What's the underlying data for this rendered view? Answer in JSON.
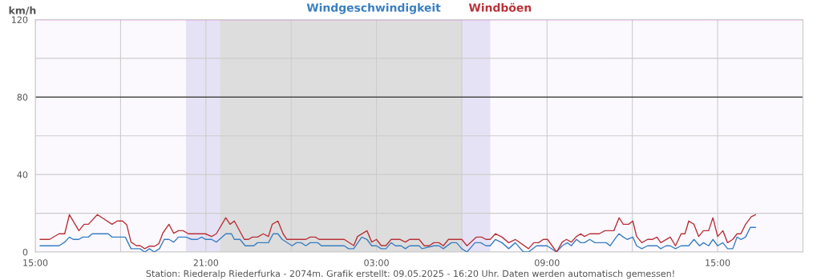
{
  "chart_data": {
    "type": "line",
    "ylabel": "km/h",
    "xlim": [
      "2025-05-08T15:00",
      "2025-05-09T18:00"
    ],
    "xticks": [
      {
        "value": "2025-05-08T15:00",
        "label": "15:00"
      },
      {
        "value": "2025-05-08T18:00",
        "label": null
      },
      {
        "value": "2025-05-08T21:00",
        "label": "21:00"
      },
      {
        "value": "2025-05-09T00:00",
        "label": null
      },
      {
        "value": "2025-05-09T03:00",
        "label": "03:00"
      },
      {
        "value": "2025-05-09T06:00",
        "label": null
      },
      {
        "value": "2025-05-09T09:00",
        "label": "09:00"
      },
      {
        "value": "2025-05-09T12:00",
        "label": null
      },
      {
        "value": "2025-05-09T15:00",
        "label": "15:00"
      }
    ],
    "ylim": [
      0,
      120
    ],
    "yticks": [
      0,
      {
        "value": 20,
        "label": null
      },
      40,
      {
        "value": 60,
        "label": null
      },
      80,
      {
        "value": 100,
        "label": null
      },
      120
    ],
    "grid": true,
    "legend": "top",
    "marker": "none",
    "line_style": "solid",
    "series": [
      {
        "name": "Windgeschwindigkeit",
        "color": "#3a7fc1",
        "x": [
          "2025-05-08T15:10",
          "2025-05-08T15:50",
          "2025-05-08T16:02",
          "2025-05-08T16:12",
          "2025-05-08T16:20",
          "2025-05-08T16:32",
          "2025-05-08T16:40",
          "2025-05-08T16:52",
          "2025-05-08T17:00",
          "2025-05-08T17:34",
          "2025-05-08T17:42",
          "2025-05-08T18:10",
          "2025-05-08T18:22",
          "2025-05-08T18:41",
          "2025-05-08T18:51",
          "2025-05-08T19:01",
          "2025-05-08T19:11",
          "2025-05-08T19:22",
          "2025-05-08T19:32",
          "2025-05-08T19:42",
          "2025-05-08T19:52",
          "2025-05-08T20:02",
          "2025-05-08T20:18",
          "2025-05-08T20:30",
          "2025-05-08T20:42",
          "2025-05-08T20:51",
          "2025-05-08T20:59",
          "2025-05-08T21:12",
          "2025-05-08T21:22",
          "2025-05-08T21:42",
          "2025-05-08T21:54",
          "2025-05-08T22:00",
          "2025-05-08T22:12",
          "2025-05-08T22:23",
          "2025-05-08T22:41",
          "2025-05-08T22:49",
          "2025-05-08T23:12",
          "2025-05-08T23:22",
          "2025-05-08T23:32",
          "2025-05-08T23:41",
          "2025-05-09T00:02",
          "2025-05-09T00:11",
          "2025-05-09T00:21",
          "2025-05-09T00:31",
          "2025-05-09T00:40",
          "2025-05-09T00:56",
          "2025-05-09T01:04",
          "2025-05-09T01:52",
          "2025-05-09T02:01",
          "2025-05-09T02:12",
          "2025-05-09T02:29",
          "2025-05-09T02:40",
          "2025-05-09T02:50",
          "2025-05-09T03:00",
          "2025-05-09T03:10",
          "2025-05-09T03:20",
          "2025-05-09T03:31",
          "2025-05-09T03:40",
          "2025-05-09T03:52",
          "2025-05-09T04:01",
          "2025-05-09T04:10",
          "2025-05-09T04:30",
          "2025-05-09T04:36",
          "2025-05-09T05:01",
          "2025-05-09T05:12",
          "2025-05-09T05:21",
          "2025-05-09T05:38",
          "2025-05-09T05:49",
          "2025-05-09T06:00",
          "2025-05-09T06:11",
          "2025-05-09T06:28",
          "2025-05-09T06:40",
          "2025-05-09T06:51",
          "2025-05-09T07:00",
          "2025-05-09T07:11",
          "2025-05-09T07:25",
          "2025-05-09T07:39",
          "2025-05-09T07:53",
          "2025-05-09T08:10",
          "2025-05-09T08:21",
          "2025-05-09T08:38",
          "2025-05-09T09:00",
          "2025-05-09T09:20",
          "2025-05-09T09:32",
          "2025-05-09T09:43",
          "2025-05-09T09:51",
          "2025-05-09T10:02",
          "2025-05-09T10:11",
          "2025-05-09T10:19",
          "2025-05-09T10:30",
          "2025-05-09T10:41",
          "2025-05-09T11:05",
          "2025-05-09T11:13",
          "2025-05-09T11:26",
          "2025-05-09T11:32",
          "2025-05-09T11:41",
          "2025-05-09T11:49",
          "2025-05-09T12:01",
          "2025-05-09T12:09",
          "2025-05-09T12:20",
          "2025-05-09T12:32",
          "2025-05-09T12:52",
          "2025-05-09T13:00",
          "2025-05-09T13:11",
          "2025-05-09T13:20",
          "2025-05-09T13:31",
          "2025-05-09T13:43",
          "2025-05-09T13:59",
          "2025-05-09T14:10",
          "2025-05-09T14:22",
          "2025-05-09T14:30",
          "2025-05-09T14:41",
          "2025-05-09T14:50",
          "2025-05-09T15:00",
          "2025-05-09T15:11",
          "2025-05-09T15:21",
          "2025-05-09T15:32",
          "2025-05-09T15:41",
          "2025-05-09T15:49",
          "2025-05-09T15:59",
          "2025-05-09T16:09",
          "2025-05-09T16:20"
        ],
        "values": [
          3.2,
          3.2,
          5.1,
          7.7,
          6.5,
          6.5,
          7.7,
          7.7,
          9.4,
          9.4,
          7.7,
          7.7,
          1.7,
          1.7,
          0,
          1.7,
          0,
          1.7,
          6.5,
          6.5,
          5.1,
          7.7,
          7.7,
          6.5,
          6.5,
          7.7,
          6.5,
          6.5,
          5.1,
          9.4,
          9.4,
          6.5,
          6.5,
          3.2,
          3.2,
          4.8,
          4.8,
          9.4,
          9.4,
          6.5,
          3.2,
          4.8,
          4.8,
          3.2,
          4.8,
          4.8,
          3.2,
          3.2,
          1.7,
          1.7,
          7.7,
          6.5,
          3.2,
          3.2,
          1.7,
          1.7,
          4.8,
          3.2,
          3.2,
          1.7,
          3.2,
          3.2,
          1.7,
          3.2,
          3.2,
          1.7,
          4.8,
          4.8,
          1.7,
          0,
          4.8,
          4.8,
          3.2,
          3.2,
          6.5,
          4.8,
          1.7,
          4.8,
          0,
          0,
          3.2,
          3.2,
          0,
          3.2,
          4.8,
          3.2,
          6.5,
          4.8,
          4.8,
          6.5,
          4.8,
          4.8,
          3.2,
          7.7,
          9.4,
          7.7,
          6.5,
          7.7,
          3.2,
          1.7,
          3.2,
          3.2,
          1.7,
          3.2,
          3.2,
          1.7,
          3.2,
          3.2,
          6.5,
          3.2,
          4.8,
          3.2,
          6.5,
          3.2,
          4.8,
          1.7,
          1.7,
          7.7,
          6.5,
          7.7,
          12.7,
          12.7
        ]
      },
      {
        "name": "Windböen",
        "color": "#b8333a",
        "x": [
          "2025-05-08T15:10",
          "2025-05-08T15:30",
          "2025-05-08T15:50",
          "2025-05-08T16:02",
          "2025-05-08T16:12",
          "2025-05-08T16:32",
          "2025-05-08T16:43",
          "2025-05-08T16:52",
          "2025-05-08T17:11",
          "2025-05-08T17:42",
          "2025-05-08T17:53",
          "2025-05-08T18:04",
          "2025-05-08T18:13",
          "2025-05-08T18:22",
          "2025-05-08T18:33",
          "2025-05-08T18:41",
          "2025-05-08T18:51",
          "2025-05-08T19:01",
          "2025-05-08T19:12",
          "2025-05-08T19:21",
          "2025-05-08T19:29",
          "2025-05-08T19:42",
          "2025-05-08T19:52",
          "2025-05-08T20:02",
          "2025-05-08T20:12",
          "2025-05-08T20:23",
          "2025-05-08T20:59",
          "2025-05-08T21:12",
          "2025-05-08T21:22",
          "2025-05-08T21:42",
          "2025-05-08T21:51",
          "2025-05-08T22:00",
          "2025-05-08T22:21",
          "2025-05-08T22:30",
          "2025-05-08T22:38",
          "2025-05-08T22:49",
          "2025-05-08T23:01",
          "2025-05-08T23:12",
          "2025-05-08T23:20",
          "2025-05-08T23:32",
          "2025-05-08T23:43",
          "2025-05-08T23:51",
          "2025-05-09T00:31",
          "2025-05-09T00:40",
          "2025-05-09T00:51",
          "2025-05-09T00:59",
          "2025-05-09T01:52",
          "2025-05-09T02:12",
          "2025-05-09T02:20",
          "2025-05-09T02:40",
          "2025-05-09T02:50",
          "2025-05-09T03:00",
          "2025-05-09T03:10",
          "2025-05-09T03:20",
          "2025-05-09T03:31",
          "2025-05-09T03:50",
          "2025-05-09T04:01",
          "2025-05-09T04:10",
          "2025-05-09T04:30",
          "2025-05-09T04:41",
          "2025-05-09T04:51",
          "2025-05-09T05:01",
          "2025-05-09T05:12",
          "2025-05-09T05:21",
          "2025-05-09T05:32",
          "2025-05-09T06:00",
          "2025-05-09T06:11",
          "2025-05-09T06:31",
          "2025-05-09T06:42",
          "2025-05-09T06:51",
          "2025-05-09T07:00",
          "2025-05-09T07:11",
          "2025-05-09T07:25",
          "2025-05-09T07:39",
          "2025-05-09T07:53",
          "2025-05-09T08:21",
          "2025-05-09T08:32",
          "2025-05-09T08:42",
          "2025-05-09T08:52",
          "2025-05-09T09:01",
          "2025-05-09T09:20",
          "2025-05-09T09:32",
          "2025-05-09T09:41",
          "2025-05-09T09:51",
          "2025-05-09T10:02",
          "2025-05-09T10:11",
          "2025-05-09T10:19",
          "2025-05-09T10:30",
          "2025-05-09T10:50",
          "2025-05-09T11:02",
          "2025-05-09T11:21",
          "2025-05-09T11:32",
          "2025-05-09T11:41",
          "2025-05-09T11:52",
          "2025-05-09T12:01",
          "2025-05-09T12:09",
          "2025-05-09T12:20",
          "2025-05-09T12:32",
          "2025-05-09T12:42",
          "2025-05-09T12:52",
          "2025-05-09T13:00",
          "2025-05-09T13:20",
          "2025-05-09T13:31",
          "2025-05-09T13:43",
          "2025-05-09T13:51",
          "2025-05-09T13:59",
          "2025-05-09T14:10",
          "2025-05-09T14:20",
          "2025-05-09T14:30",
          "2025-05-09T14:41",
          "2025-05-09T14:50",
          "2025-05-09T15:00",
          "2025-05-09T15:11",
          "2025-05-09T15:21",
          "2025-05-09T15:32",
          "2025-05-09T15:41",
          "2025-05-09T15:49",
          "2025-05-09T15:59",
          "2025-05-09T16:11",
          "2025-05-09T16:20"
        ],
        "values": [
          6.5,
          6.5,
          9.4,
          9.4,
          19.3,
          11,
          14.3,
          14.3,
          19.3,
          14.3,
          16,
          16,
          14,
          5.1,
          3.3,
          3.3,
          1.7,
          3,
          3,
          4.4,
          9.7,
          14.3,
          9.7,
          11,
          11,
          9.4,
          9.4,
          8,
          9.4,
          17.7,
          14.3,
          16,
          6.5,
          6.5,
          7.7,
          7.7,
          9.4,
          8,
          14.3,
          16,
          9.4,
          6.5,
          6.5,
          7.7,
          7.7,
          6.5,
          6.5,
          3.3,
          8,
          11,
          5.1,
          6.5,
          3.3,
          3.3,
          6.5,
          6.5,
          5.1,
          6.5,
          6.5,
          3.2,
          3.2,
          4.8,
          4.8,
          3.2,
          6.5,
          6.5,
          3.2,
          7.7,
          7.7,
          6.5,
          6.5,
          9.4,
          7.7,
          4.8,
          6.5,
          1.7,
          4.8,
          4.8,
          6.5,
          6.5,
          0,
          5.1,
          6.5,
          5.1,
          8,
          9.4,
          8,
          9.4,
          9.4,
          11,
          11,
          17.7,
          14.3,
          14.3,
          16,
          8,
          4.8,
          6.5,
          6.5,
          7.7,
          4.8,
          7.7,
          3.2,
          9.4,
          9.4,
          16,
          14.3,
          8,
          11,
          11,
          17.7,
          8,
          11,
          4.8,
          6.5,
          9.4,
          9.4,
          14.3,
          18.2,
          19.3
        ]
      }
    ],
    "ref_lines": [
      {
        "axis": "y",
        "value": 80,
        "color": "#333333",
        "line_style": "solid"
      },
      {
        "axis": "y",
        "value": 120,
        "color": "#e060e8",
        "line_style": "solid"
      }
    ],
    "bands": [
      {
        "axis": "x",
        "from": "2025-05-08T20:18",
        "to": "2025-05-09T07:00",
        "color": "#e6e2f5"
      },
      {
        "axis": "x",
        "from": "2025-05-08T21:30",
        "to": "2025-05-09T06:00",
        "color": "#dddddd"
      }
    ],
    "annotations": [
      "Station: Riederalp Riederfurka - 2074m. Grafik erstellt: 09.05.2025 - 16:20 Uhr. Daten werden automatisch gemessen!"
    ]
  }
}
